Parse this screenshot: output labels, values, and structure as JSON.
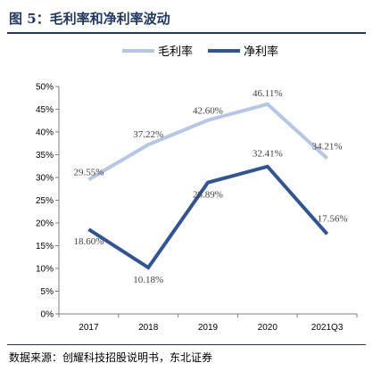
{
  "header": {
    "title": "图 5：毛利率和净利率波动"
  },
  "footer": {
    "source": "数据来源：创耀科技招股说明书，东北证券"
  },
  "chart_data": {
    "type": "line",
    "categories": [
      "2017",
      "2018",
      "2019",
      "2020",
      "2021Q3"
    ],
    "ylim": [
      0,
      50
    ],
    "yticks": [
      "0%",
      "5%",
      "10%",
      "15%",
      "20%",
      "25%",
      "30%",
      "35%",
      "40%",
      "45%",
      "50%"
    ],
    "legend_position": "top-center",
    "grid": false,
    "series": [
      {
        "name": "毛利率",
        "color": "#b4c7e7",
        "values": [
          29.55,
          37.22,
          42.6,
          46.11,
          34.21
        ],
        "labels": [
          "29.55%",
          "37.22%",
          "42.60%",
          "46.11%",
          "34.21%"
        ]
      },
      {
        "name": "净利率",
        "color": "#2f5597",
        "values": [
          18.6,
          10.18,
          28.89,
          32.41,
          17.56
        ],
        "labels": [
          "18.60%",
          "10.18%",
          "28.89%",
          "32.41%",
          "17.56%"
        ]
      }
    ]
  }
}
